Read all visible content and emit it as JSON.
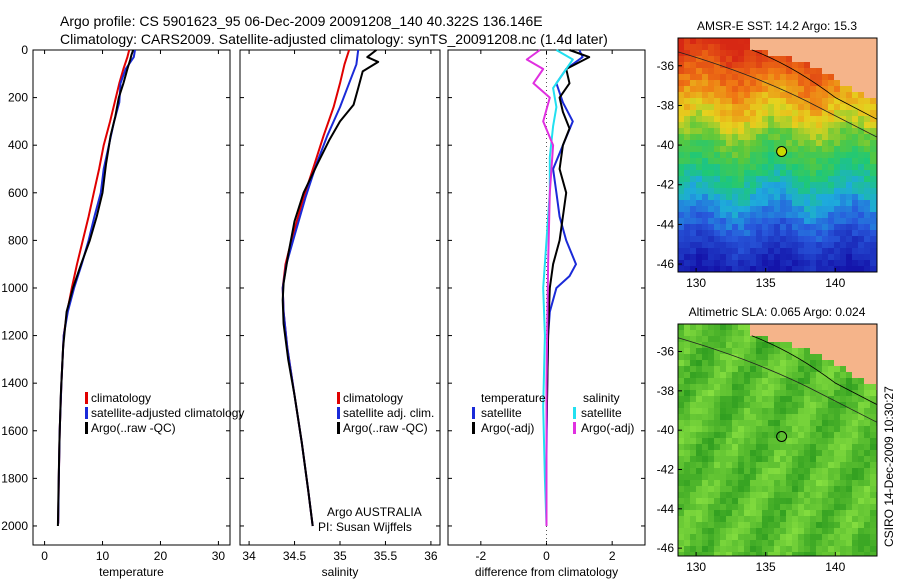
{
  "header": {
    "line1": "Argo profile: CS 5901623_95 06-Dec-2009 20091208_140 40.322S 136.146E",
    "line2": "Climatology: CARS2009. Satellite-adjusted climatology: synTS_20091208.nc (1.4d later)"
  },
  "colors": {
    "climatology": "#e00000",
    "satellite": "#1a2ad8",
    "argo": "#000000",
    "sal_satellite": "#22e0f0",
    "sal_argo": "#e030e0",
    "land": "#f5b48a",
    "marker": "#c8d800"
  },
  "credit": "CSIRO 14-Dec-2009 10:30:27",
  "chart_data": [
    {
      "id": "temperature",
      "type": "line",
      "xlabel": "temperature",
      "ylabel": "",
      "xlim": [
        -2,
        32
      ],
      "ylim": [
        2080,
        0
      ],
      "xticks": [
        0,
        10,
        20,
        30
      ],
      "xtick_labels": [
        "0",
        "10",
        "20",
        "30"
      ],
      "yticks": [
        0,
        200,
        400,
        600,
        800,
        1000,
        1200,
        1400,
        1600,
        1800,
        2000
      ],
      "ytick_labels": [
        "0",
        "200",
        "400",
        "600",
        "800",
        "1000",
        "1200",
        "1400",
        "1600",
        "1800",
        "2000"
      ],
      "legend": [
        "climatology",
        "satellite-adjusted climatology",
        "Argo(..raw -QC)"
      ],
      "legend_position": "lower-right",
      "series": [
        {
          "name": "climatology",
          "color_key": "climatology",
          "x": [
            14.6,
            14.3,
            13.6,
            12.9,
            12.1,
            11.3,
            10.2,
            9.4,
            8.5,
            7.6,
            6.6,
            5.6,
            4.7,
            3.9,
            3.3,
            2.9,
            2.6,
            2.45,
            2.35
          ],
          "y": [
            0,
            30,
            80,
            140,
            220,
            300,
            400,
            500,
            600,
            700,
            800,
            900,
            1000,
            1100,
            1200,
            1400,
            1600,
            1800,
            1990
          ]
        },
        {
          "name": "satellite-adjusted climatology",
          "color_key": "satellite",
          "x": [
            15.6,
            15.4,
            14.0,
            13.1,
            12.9,
            12.0,
            11.1,
            10.2,
            9.7,
            8.6,
            7.6,
            6.4,
            5.1,
            4.0,
            3.3,
            2.9,
            2.6,
            2.45,
            2.35
          ],
          "y": [
            0,
            30,
            80,
            140,
            220,
            300,
            400,
            500,
            600,
            700,
            800,
            900,
            1000,
            1100,
            1200,
            1400,
            1600,
            1800,
            1990
          ]
        },
        {
          "name": "Argo(..raw -QC)",
          "color_key": "argo",
          "x": [
            15.3,
            15.0,
            14.8,
            14.3,
            13.6,
            12.8,
            12.2,
            11.4,
            10.6,
            10.0,
            9.0,
            7.8,
            6.3,
            4.9,
            3.8,
            3.2,
            2.8,
            2.55,
            2.4,
            2.3
          ],
          "y": [
            0,
            20,
            40,
            80,
            140,
            200,
            280,
            360,
            480,
            600,
            700,
            800,
            900,
            1000,
            1100,
            1250,
            1450,
            1650,
            1850,
            2000
          ]
        }
      ]
    },
    {
      "id": "salinity",
      "type": "line",
      "xlabel": "salinity",
      "ylabel": "",
      "xlim": [
        33.9,
        36.1
      ],
      "ylim": [
        2080,
        0
      ],
      "xticks": [
        34,
        34.5,
        35,
        35.5,
        36
      ],
      "xtick_labels": [
        "34",
        "34.5",
        "35",
        "35.5",
        "36"
      ],
      "legend": [
        "climatology",
        "satellite adj. clim.",
        "Argo(..raw -QC)"
      ],
      "legend_position": "lower-right",
      "annotation": [
        "Argo AUSTRALIA",
        "PI: Susan Wijffels"
      ],
      "series": [
        {
          "name": "climatology",
          "color_key": "climatology",
          "x": [
            35.1,
            35.05,
            35.0,
            34.93,
            34.82,
            34.72,
            34.6,
            34.48,
            34.4,
            34.37,
            34.38,
            34.42,
            34.5,
            34.58,
            34.65,
            34.7
          ],
          "y": [
            0,
            60,
            140,
            240,
            360,
            480,
            620,
            780,
            900,
            1000,
            1100,
            1250,
            1450,
            1650,
            1850,
            2000
          ]
        },
        {
          "name": "satellite adj. clim.",
          "color_key": "satellite",
          "x": [
            35.2,
            35.18,
            35.1,
            35.0,
            34.86,
            34.74,
            34.62,
            34.5,
            34.41,
            34.37,
            34.38,
            34.42,
            34.5,
            34.58,
            34.65,
            34.7
          ],
          "y": [
            0,
            60,
            140,
            240,
            360,
            480,
            620,
            780,
            900,
            1000,
            1100,
            1250,
            1450,
            1650,
            1850,
            2000
          ]
        },
        {
          "name": "Argo(..raw -QC)",
          "color_key": "argo",
          "x": [
            35.4,
            35.3,
            35.42,
            35.25,
            35.2,
            35.15,
            35.0,
            34.88,
            34.75,
            34.6,
            34.5,
            34.43,
            34.38,
            34.37,
            34.38,
            34.43,
            34.5,
            34.58,
            34.65,
            34.7
          ],
          "y": [
            0,
            30,
            50,
            90,
            160,
            230,
            300,
            380,
            480,
            600,
            720,
            860,
            980,
            1050,
            1150,
            1300,
            1450,
            1650,
            1850,
            2000
          ]
        }
      ]
    },
    {
      "id": "difference",
      "type": "line",
      "xlabel": "difference from climatology",
      "ylabel": "",
      "xlim": [
        -3,
        3
      ],
      "ylim": [
        2080,
        0
      ],
      "xticks": [
        -2,
        0,
        2
      ],
      "xtick_labels": [
        "-2",
        "0",
        "2"
      ],
      "legend": [
        "temperature",
        "satellite",
        "Argo(-adj)",
        "salinity",
        "satellite",
        "Argo(-adj)"
      ],
      "legend_position": "lower-center",
      "series": [
        {
          "name": "temperature satellite",
          "color_key": "satellite",
          "x": [
            1.0,
            1.1,
            0.6,
            0.3,
            0.5,
            0.8,
            0.5,
            0.2,
            0.3,
            0.4,
            0.6,
            0.9,
            0.7,
            0.3,
            0.1,
            0.05,
            0.02,
            0.0,
            0.0
          ],
          "y": [
            0,
            30,
            80,
            140,
            220,
            300,
            400,
            500,
            600,
            700,
            800,
            900,
            950,
            1000,
            1100,
            1200,
            1400,
            1700,
            2000
          ]
        },
        {
          "name": "temperature Argo(-adj)",
          "color_key": "argo",
          "x": [
            0.7,
            1.3,
            0.6,
            0.7,
            0.4,
            0.5,
            0.7,
            0.5,
            0.4,
            0.6,
            0.4,
            0.2,
            0.1,
            0.05,
            0.0,
            0.0
          ],
          "y": [
            0,
            30,
            80,
            140,
            200,
            260,
            330,
            400,
            500,
            600,
            800,
            900,
            1000,
            1200,
            1600,
            2000
          ]
        },
        {
          "name": "salinity satellite",
          "color_key": "sal_satellite",
          "x": [
            0.3,
            0.8,
            0.5,
            0.2,
            0.3,
            0.2,
            0.1,
            0.1,
            0.0,
            -0.1,
            -0.05,
            -0.1,
            -0.05,
            0.0
          ],
          "y": [
            0,
            40,
            100,
            160,
            240,
            320,
            450,
            600,
            800,
            1000,
            1200,
            1500,
            1800,
            2000
          ]
        },
        {
          "name": "salinity Argo(-adj)",
          "color_key": "sal_argo",
          "x": [
            -0.2,
            -0.6,
            -0.1,
            -0.4,
            0.1,
            -0.1,
            0.2,
            0.1,
            0.05,
            0.0,
            0.0
          ],
          "y": [
            0,
            40,
            80,
            140,
            200,
            300,
            400,
            600,
            900,
            1400,
            2000
          ]
        }
      ]
    },
    {
      "id": "amsre-sst-map",
      "type": "heatmap",
      "title": "AMSR-E SST: 14.2 Argo: 15.3",
      "xticks": [
        130,
        135,
        140
      ],
      "xtick_labels": [
        "130",
        "135",
        "140"
      ],
      "yticks": [
        -36,
        -38,
        -40,
        -42,
        -44,
        -46
      ],
      "ytick_labels": [
        "-36",
        "-38",
        "-40",
        "-42",
        "-44",
        "-46"
      ],
      "xlim": [
        128.7,
        143.0
      ],
      "ylim": [
        -46.4,
        -34.6
      ],
      "marker": {
        "lon": 136.146,
        "lat": -40.322
      }
    },
    {
      "id": "altimetric-sla-map",
      "type": "heatmap",
      "title": "Altimetric SLA: 0.065 Argo: 0.024",
      "xticks": [
        130,
        135,
        140
      ],
      "xtick_labels": [
        "130",
        "135",
        "140"
      ],
      "yticks": [
        -36,
        -38,
        -40,
        -42,
        -44,
        -46
      ],
      "ytick_labels": [
        "-36",
        "-38",
        "-40",
        "-42",
        "-44",
        "-46"
      ],
      "xlim": [
        128.7,
        143.0
      ],
      "ylim": [
        -46.4,
        -34.6
      ],
      "marker": {
        "lon": 136.146,
        "lat": -40.322
      }
    }
  ]
}
